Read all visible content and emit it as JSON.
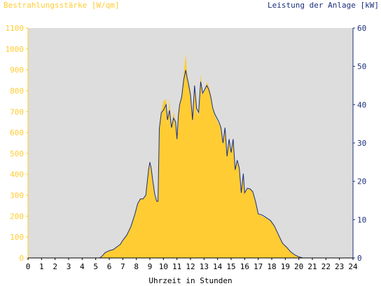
{
  "chart_data": {
    "type": "area",
    "title_left": "Bestrahlungsstärke [W/qm]",
    "title_right": "Leistung der Anlage [kW]",
    "xlabel": "Uhrzeit in Stunden",
    "x_ticks": [
      "0",
      "1",
      "2",
      "3",
      "4",
      "5",
      "6",
      "7",
      "8",
      "9",
      "10",
      "11",
      "12",
      "13",
      "14",
      "15",
      "16",
      "17",
      "18",
      "19",
      "20",
      "21",
      "22",
      "23",
      "24"
    ],
    "y_left_ticks": [
      "0",
      "100",
      "200",
      "300",
      "400",
      "500",
      "600",
      "700",
      "800",
      "900",
      "1000",
      "1100"
    ],
    "y_right_ticks": [
      "0",
      "10",
      "20",
      "30",
      "40",
      "50",
      "60"
    ],
    "xlim": [
      0,
      24
    ],
    "ylim_left": [
      0,
      1100
    ],
    "ylim_right": [
      0,
      60
    ],
    "grid": false,
    "series": [
      {
        "name": "Bestrahlungsstärke [W/qm]",
        "axis": "left",
        "color": "#ffcc33",
        "x": [
          0,
          5.3,
          5.5,
          5.7,
          6,
          6.3,
          6.6,
          6.8,
          7,
          7.3,
          7.6,
          7.9,
          8.1,
          8.3,
          8.5,
          8.7,
          8.9,
          9.0,
          9.1,
          9.2,
          9.35,
          9.5,
          9.6,
          9.7,
          9.85,
          10,
          10.2,
          10.3,
          10.45,
          10.6,
          10.75,
          10.9,
          11.0,
          11.1,
          11.2,
          11.35,
          11.5,
          11.65,
          11.75,
          11.85,
          12.0,
          12.15,
          12.3,
          12.45,
          12.6,
          12.75,
          12.9,
          13.05,
          13.2,
          13.35,
          13.5,
          13.65,
          13.8,
          13.95,
          14.1,
          14.25,
          14.4,
          14.55,
          14.7,
          14.85,
          15.0,
          15.15,
          15.3,
          15.45,
          15.6,
          15.75,
          15.9,
          16.0,
          16.2,
          16.4,
          16.6,
          16.8,
          17.0,
          17.3,
          17.6,
          17.9,
          18.2,
          18.5,
          18.8,
          19.1,
          19.4,
          19.7,
          20.0,
          20.3,
          24
        ],
        "values": [
          0,
          0,
          10,
          25,
          35,
          40,
          55,
          65,
          85,
          110,
          150,
          210,
          260,
          285,
          285,
          300,
          420,
          460,
          430,
          380,
          310,
          270,
          270,
          620,
          700,
          750,
          760,
          640,
          760,
          620,
          700,
          650,
          560,
          700,
          740,
          780,
          880,
          980,
          880,
          840,
          800,
          640,
          840,
          700,
          680,
          880,
          780,
          800,
          840,
          820,
          780,
          720,
          680,
          660,
          640,
          620,
          540,
          620,
          480,
          560,
          500,
          560,
          420,
          470,
          430,
          310,
          400,
          310,
          330,
          330,
          320,
          270,
          210,
          200,
          190,
          180,
          150,
          110,
          70,
          50,
          30,
          15,
          5,
          0,
          0
        ]
      },
      {
        "name": "Leistung der Anlage [kW]",
        "axis": "right",
        "color": "#1a2f7a",
        "x": [
          0,
          5.3,
          5.5,
          5.7,
          6,
          6.3,
          6.6,
          6.8,
          7,
          7.3,
          7.6,
          7.9,
          8.1,
          8.3,
          8.5,
          8.7,
          8.9,
          9.0,
          9.1,
          9.2,
          9.35,
          9.5,
          9.6,
          9.7,
          9.85,
          10,
          10.2,
          10.3,
          10.45,
          10.6,
          10.75,
          10.9,
          11.0,
          11.1,
          11.2,
          11.35,
          11.5,
          11.65,
          11.75,
          11.85,
          12.0,
          12.15,
          12.3,
          12.45,
          12.6,
          12.75,
          12.9,
          13.05,
          13.2,
          13.35,
          13.5,
          13.65,
          13.8,
          13.95,
          14.1,
          14.25,
          14.4,
          14.55,
          14.7,
          14.85,
          15.0,
          15.15,
          15.3,
          15.45,
          15.6,
          15.75,
          15.9,
          16.0,
          16.2,
          16.4,
          16.6,
          16.8,
          17.0,
          17.3,
          17.6,
          17.9,
          18.2,
          18.5,
          18.8,
          19.1,
          19.4,
          19.7,
          20.0,
          20.3,
          24
        ],
        "values": [
          0,
          0,
          0.6,
          1.4,
          1.9,
          2.2,
          3,
          3.5,
          4.6,
          6,
          8.2,
          11.5,
          14.2,
          15.4,
          15.4,
          16.4,
          23,
          25,
          23.4,
          20.5,
          16.8,
          14.8,
          14.8,
          33.8,
          38,
          38.5,
          40,
          36,
          38.5,
          34,
          36.5,
          35.5,
          31,
          37,
          40,
          42,
          46.5,
          49,
          47,
          45.5,
          42.5,
          36,
          45,
          39,
          38,
          46,
          43,
          44,
          45,
          44,
          42,
          39,
          37.5,
          36.5,
          35.5,
          34,
          30,
          34,
          26.5,
          31,
          27.5,
          31,
          23,
          25.5,
          23.5,
          17,
          22,
          17,
          18.2,
          18,
          17.3,
          14.8,
          11.5,
          11.2,
          10.5,
          9.8,
          8.3,
          6,
          3.8,
          2.8,
          1.6,
          0.8,
          0.3,
          0,
          0
        ]
      }
    ]
  }
}
